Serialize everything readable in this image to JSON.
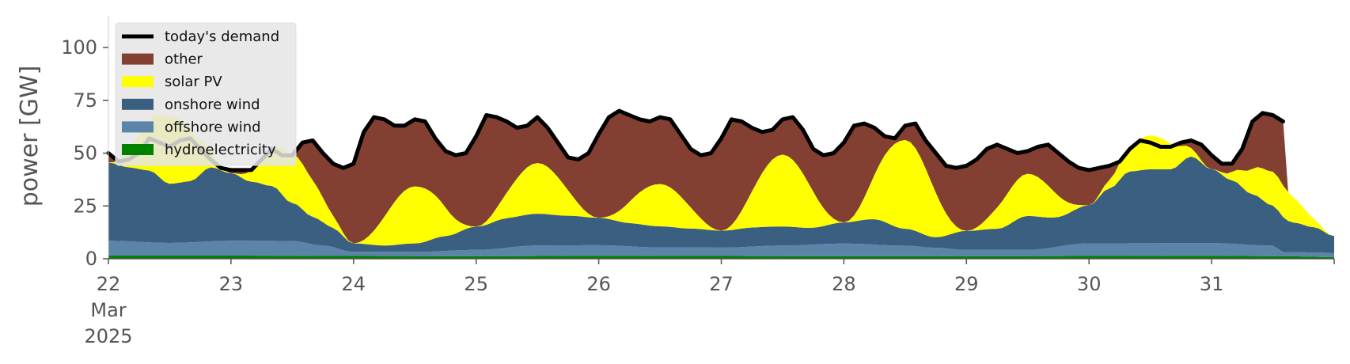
{
  "chart_data": {
    "type": "area",
    "ylabel": "power [GW]",
    "ylim": [
      0,
      115
    ],
    "xlim": [
      0,
      240
    ],
    "x_unit": "hours since 22 Mar 2025 00:00",
    "yticks": [
      0,
      25,
      50,
      75,
      100
    ],
    "xticks": [
      {
        "day": "22",
        "month": "Mar",
        "year": "2025"
      },
      {
        "day": "23"
      },
      {
        "day": "24"
      },
      {
        "day": "25"
      },
      {
        "day": "26"
      },
      {
        "day": "27"
      },
      {
        "day": "28"
      },
      {
        "day": "29"
      },
      {
        "day": "30"
      },
      {
        "day": "31"
      }
    ],
    "grid": false,
    "legend_position": "top-left",
    "series": [
      {
        "name": "hydroelectricity",
        "color": "#008000",
        "x": [
          0,
          24,
          48,
          72,
          96,
          120,
          144,
          168,
          192,
          216,
          230,
          240
        ],
        "y": [
          1.5,
          1.5,
          1.3,
          1.2,
          1.4,
          1.3,
          1.2,
          1.2,
          1.3,
          1.4,
          1.2,
          0.8
        ]
      },
      {
        "name": "offshore wind",
        "color": "#5b84a8",
        "x": [
          0,
          12,
          24,
          36,
          42,
          48,
          60,
          72,
          84,
          96,
          108,
          120,
          132,
          144,
          156,
          162,
          168,
          180,
          192,
          204,
          216,
          228,
          230,
          240
        ],
        "y": [
          7,
          6,
          7,
          7,
          5,
          2,
          2,
          3,
          5,
          5,
          4,
          4,
          5,
          6,
          5,
          4,
          3,
          3,
          6,
          6,
          6,
          5,
          2,
          2
        ]
      },
      {
        "name": "onshore wind",
        "color": "#3b5f80",
        "x": [
          0,
          4,
          8,
          12,
          16,
          20,
          24,
          28,
          32,
          36,
          40,
          44,
          48,
          54,
          60,
          66,
          72,
          78,
          84,
          90,
          96,
          102,
          108,
          114,
          120,
          126,
          132,
          138,
          144,
          150,
          156,
          162,
          168,
          174,
          180,
          186,
          192,
          196,
          200,
          204,
          208,
          212,
          216,
          220,
          224,
          228,
          232,
          236,
          240
        ],
        "y": [
          37,
          35,
          34,
          28,
          29,
          35,
          32,
          28,
          26,
          18,
          13,
          9,
          4,
          3,
          4,
          7,
          11,
          14,
          15,
          14,
          13,
          11,
          10,
          9,
          8,
          9,
          9,
          8,
          10,
          12,
          8,
          5,
          9,
          10,
          16,
          14,
          18,
          26,
          34,
          35,
          35,
          41,
          35,
          30,
          24,
          19,
          14,
          12,
          8
        ]
      },
      {
        "name": "solar PV",
        "color": "#ffff00",
        "x": [
          0,
          12,
          24,
          36,
          48,
          60,
          72,
          84,
          96,
          108,
          120,
          132,
          144,
          156,
          168,
          180,
          192,
          204,
          216,
          228,
          240
        ],
        "y": [
          0,
          32,
          0,
          23,
          0,
          27,
          0,
          24,
          0,
          20,
          0,
          34,
          0,
          42,
          0,
          20,
          0,
          16,
          0,
          16,
          0
        ]
      }
    ],
    "demand": {
      "name": "today's demand",
      "color": "#000000",
      "x": [
        0,
        2,
        4,
        6,
        8,
        10,
        12,
        14,
        16,
        18,
        20,
        22,
        24,
        26,
        28,
        30,
        32,
        34,
        36,
        38,
        40,
        42,
        44,
        46,
        48,
        50,
        52,
        54,
        56,
        58,
        60,
        62,
        64,
        66,
        68,
        70,
        72,
        74,
        76,
        78,
        80,
        82,
        84,
        86,
        88,
        90,
        92,
        94,
        96,
        98,
        100,
        102,
        104,
        106,
        108,
        110,
        112,
        114,
        116,
        118,
        120,
        122,
        124,
        126,
        128,
        130,
        132,
        134,
        136,
        138,
        140,
        142,
        144,
        146,
        148,
        150,
        152,
        154,
        156,
        158,
        160,
        162,
        164,
        166,
        168,
        170,
        172,
        174,
        176,
        178,
        180,
        182,
        184,
        186,
        188,
        190,
        192,
        194,
        196,
        198,
        200,
        202,
        204,
        206,
        208,
        210,
        212,
        214,
        216,
        218,
        220,
        222,
        224,
        226,
        228,
        230
      ],
      "y": [
        50,
        46,
        47,
        50,
        57,
        55,
        53,
        56,
        57,
        52,
        47,
        43,
        42,
        42,
        42,
        47,
        52,
        49,
        49,
        55,
        56,
        50,
        45,
        43,
        45,
        60,
        67,
        66,
        63,
        63,
        66,
        65,
        57,
        51,
        49,
        50,
        58,
        68,
        67,
        65,
        62,
        63,
        67,
        62,
        55,
        48,
        47,
        50,
        59,
        67,
        70,
        68,
        66,
        65,
        67,
        66,
        59,
        52,
        49,
        50,
        57,
        66,
        65,
        62,
        60,
        61,
        66,
        67,
        61,
        52,
        49,
        50,
        55,
        63,
        64,
        62,
        58,
        57,
        63,
        64,
        56,
        50,
        44,
        43,
        44,
        47,
        52,
        54,
        52,
        50,
        51,
        53,
        54,
        50,
        46,
        43,
        42,
        43,
        44,
        46,
        52,
        56,
        55,
        53,
        53,
        55,
        56,
        54,
        49,
        45,
        45,
        52,
        65,
        69,
        68,
        65
      ]
    },
    "other": {
      "name": "other",
      "color": "#843f33"
    },
    "legend": {
      "order": [
        "today's demand",
        "other",
        "solar PV",
        "onshore wind",
        "offshore wind",
        "hydroelectricity"
      ],
      "colors": [
        "#000000",
        "#843f33",
        "#ffff00",
        "#3b5f80",
        "#5b84a8",
        "#008000"
      ]
    }
  }
}
